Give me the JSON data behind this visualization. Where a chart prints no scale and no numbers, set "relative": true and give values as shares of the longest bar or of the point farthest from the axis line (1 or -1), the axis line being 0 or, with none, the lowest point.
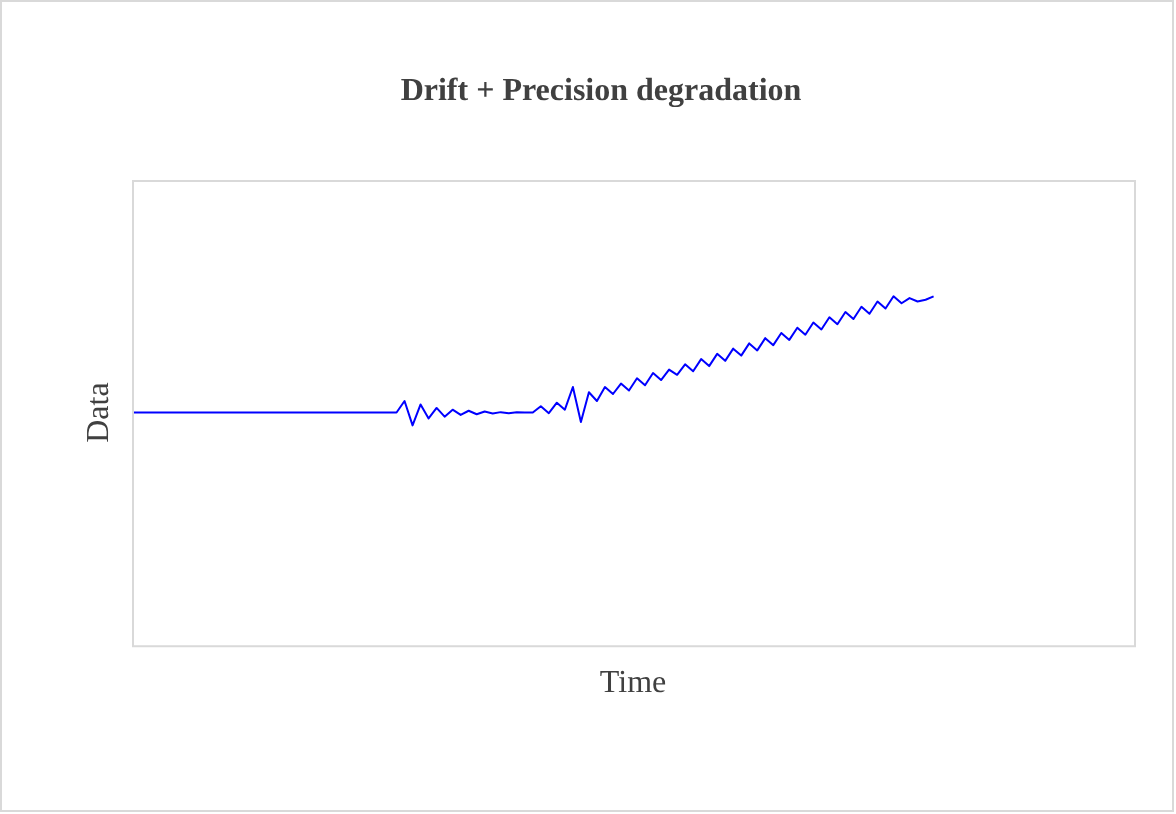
{
  "chart_data": {
    "type": "line",
    "title": "Drift + Precision degradation",
    "xlabel": "Time",
    "ylabel": "Data",
    "relative": true,
    "legend": false,
    "marker": "none",
    "line_style": "solid",
    "categories": [
      null,
      null,
      null,
      null,
      null,
      null,
      null,
      null,
      null,
      null,
      null,
      null,
      null,
      null,
      null,
      null,
      null,
      null,
      null,
      null,
      null,
      null,
      null,
      null,
      null,
      null,
      null,
      null,
      null,
      null,
      null,
      null,
      null,
      null,
      null,
      null,
      null,
      null,
      null,
      null,
      null,
      null,
      null,
      null,
      null,
      null,
      null,
      null,
      null,
      null,
      null,
      null,
      null,
      null,
      null,
      null,
      null,
      null,
      null,
      null,
      null,
      null,
      null,
      null,
      null,
      null,
      null,
      null,
      null,
      null,
      null,
      null,
      null,
      null,
      null,
      null,
      null,
      null,
      null,
      null,
      null,
      null,
      null,
      null,
      null,
      null,
      null,
      null,
      null,
      null,
      null,
      null,
      null,
      null,
      null,
      null,
      null,
      null,
      null,
      null,
      null,
      null,
      null,
      null,
      null,
      null,
      null,
      null,
      null,
      null,
      null,
      null,
      null,
      null,
      null,
      null,
      null,
      null,
      null,
      null,
      null,
      null,
      null,
      null,
      null,
      null
    ],
    "series": [
      {
        "color": "#0000ff",
        "values": [
          0.667,
          0.667,
          0.667,
          0.667,
          0.667,
          0.667,
          0.667,
          0.667,
          0.667,
          0.667,
          0.667,
          0.667,
          0.667,
          0.667,
          0.667,
          0.667,
          0.667,
          0.667,
          0.667,
          0.667,
          0.667,
          0.667,
          0.667,
          0.667,
          0.667,
          0.667,
          0.667,
          0.667,
          0.667,
          0.667,
          0.667,
          0.667,
          0.667,
          0.667,
          0.7,
          0.63,
          0.69,
          0.65,
          0.68,
          0.655,
          0.675,
          0.66,
          0.672,
          0.662,
          0.67,
          0.664,
          0.668,
          0.665,
          0.668,
          0.667,
          0.667,
          0.685,
          0.665,
          0.695,
          0.675,
          0.74,
          0.64,
          0.725,
          0.7,
          0.74,
          0.72,
          0.75,
          0.73,
          0.765,
          0.745,
          0.78,
          0.76,
          0.79,
          0.775,
          0.805,
          0.785,
          0.82,
          0.8,
          0.835,
          0.815,
          0.85,
          0.83,
          0.865,
          0.845,
          0.88,
          0.86,
          0.895,
          0.875,
          0.91,
          0.89,
          0.925,
          0.905,
          0.94,
          0.92,
          0.955,
          0.935,
          0.97,
          0.95,
          0.985,
          0.965,
          1.0,
          0.98,
          0.995,
          0.985,
          0.99,
          1.0,
          null,
          null,
          null,
          null,
          null,
          null,
          null,
          null,
          null,
          null,
          null,
          null,
          null,
          null,
          null,
          null,
          null,
          null,
          null,
          null,
          null,
          null,
          null,
          null,
          null
        ]
      }
    ]
  }
}
